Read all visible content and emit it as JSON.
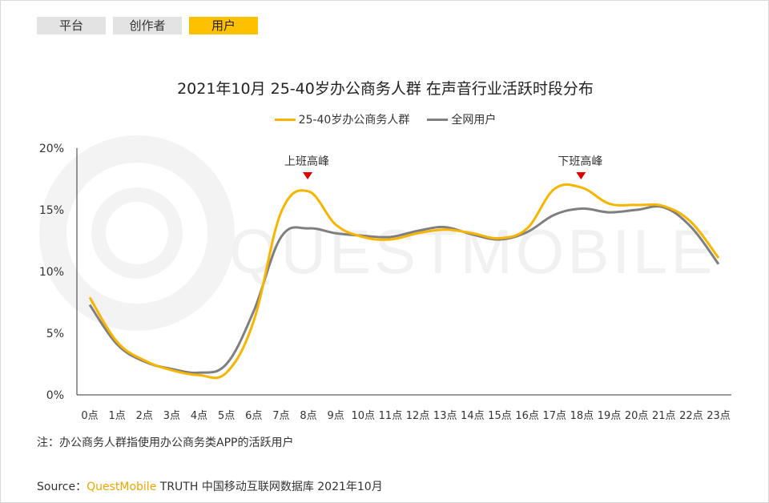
{
  "tabs": [
    {
      "label": "平台",
      "active": false
    },
    {
      "label": "创作者",
      "active": false
    },
    {
      "label": "用户",
      "active": true
    }
  ],
  "watermark": "QUESTMOBILE",
  "colors": {
    "accent": "#ffc000",
    "series_a": "#f7b500",
    "series_b": "#7f7f7f",
    "marker": "#e00000"
  },
  "chart_data": {
    "type": "line",
    "title": "2021年10月 25-40岁办公商务人群 在声音行业活跃时段分布",
    "x": [
      "0点",
      "1点",
      "2点",
      "3点",
      "4点",
      "5点",
      "6点",
      "7点",
      "8点",
      "9点",
      "10点",
      "11点",
      "12点",
      "13点",
      "14点",
      "15点",
      "16点",
      "17点",
      "18点",
      "19点",
      "20点",
      "21点",
      "22点",
      "23点"
    ],
    "ylim": [
      0,
      20
    ],
    "yticks": [
      "0%",
      "5%",
      "10%",
      "15%",
      "20%"
    ],
    "series": [
      {
        "name": "25-40岁办公商务人群",
        "values": [
          7.9,
          4.3,
          2.8,
          2.0,
          1.6,
          1.8,
          6.0,
          14.8,
          16.5,
          13.8,
          12.8,
          12.6,
          13.1,
          13.4,
          13.1,
          12.7,
          13.5,
          16.7,
          16.8,
          15.5,
          15.4,
          15.3,
          14.0,
          11.1
        ]
      },
      {
        "name": "全网用户",
        "values": [
          7.3,
          4.1,
          2.7,
          2.1,
          1.8,
          2.5,
          6.8,
          12.8,
          13.5,
          13.1,
          12.9,
          12.8,
          13.3,
          13.6,
          13.0,
          12.6,
          13.2,
          14.6,
          15.1,
          14.8,
          15.0,
          15.2,
          13.6,
          10.6
        ]
      }
    ],
    "annotations": [
      {
        "text": "上班高峰",
        "x": "8点"
      },
      {
        "text": "下班高峰",
        "x": "18点"
      }
    ],
    "grid": false,
    "legend": "top-center"
  },
  "note": "注：办公商务人群指使用办公商务类APP的活跃用户",
  "source": {
    "prefix": "Source：",
    "brand": "QuestMobile",
    "rest": " TRUTH 中国移动互联网数据库 2021年10月"
  }
}
